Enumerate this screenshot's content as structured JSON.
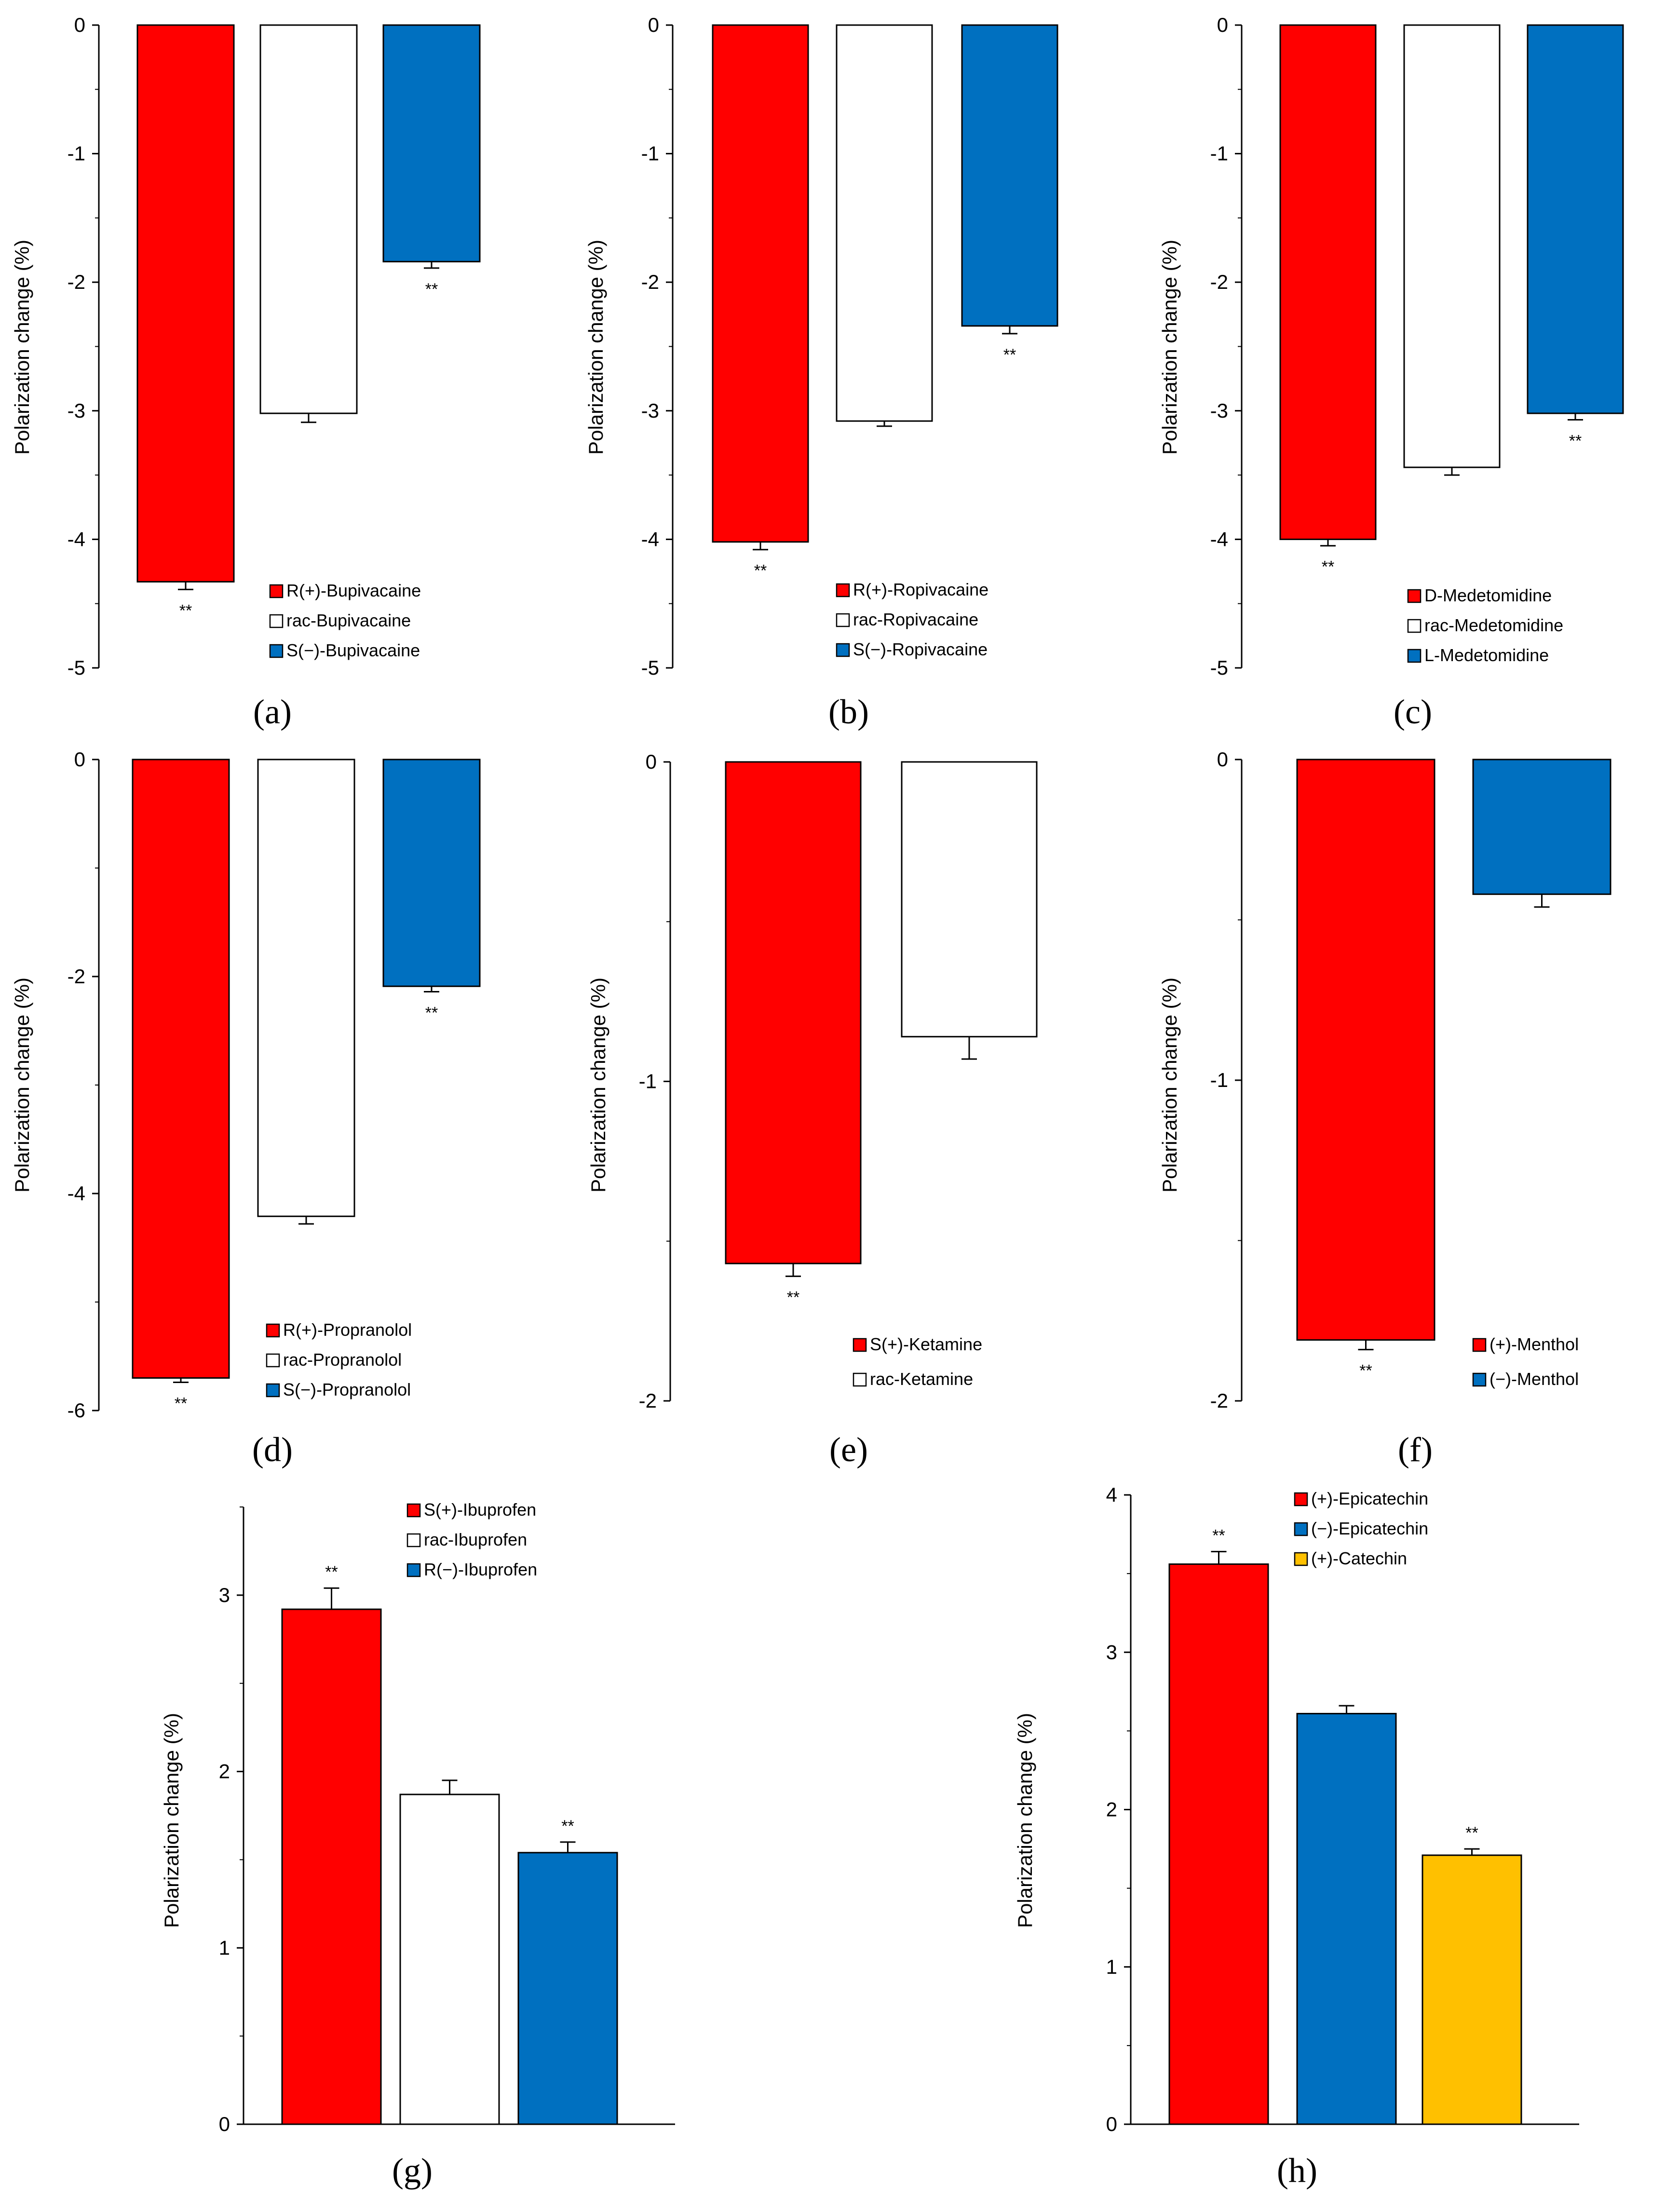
{
  "chart_data": [
    {
      "panel": "a",
      "panel_label": "(a)",
      "type": "bar",
      "ylabel": "Polarization change (%)",
      "ylim": [
        -5,
        0
      ],
      "yticks": [
        0,
        -1,
        -2,
        -3,
        -4,
        -5
      ],
      "categories": [
        "R(+)-Bupivacaine",
        "rac-Bupivacaine",
        "S(−)-Bupivacaine"
      ],
      "values": [
        -4.33,
        -3.02,
        -1.84
      ],
      "errors": [
        0.06,
        0.07,
        0.05
      ],
      "significance": [
        "**",
        "",
        "**"
      ],
      "colors": [
        "#ff0000",
        "#ffffff",
        "#0070c0"
      ]
    },
    {
      "panel": "b",
      "panel_label": "(b)",
      "type": "bar",
      "ylabel": "Polarization change (%)",
      "ylim": [
        -5,
        0
      ],
      "yticks": [
        0,
        -1,
        -2,
        -3,
        -4,
        -5
      ],
      "categories": [
        "R(+)-Ropivacaine",
        "rac-Ropivacaine",
        "S(−)-Ropivacaine"
      ],
      "values": [
        -4.02,
        -3.08,
        -2.34
      ],
      "errors": [
        0.06,
        0.04,
        0.06
      ],
      "significance": [
        "**",
        "",
        "**"
      ],
      "colors": [
        "#ff0000",
        "#ffffff",
        "#0070c0"
      ]
    },
    {
      "panel": "c",
      "panel_label": "(c)",
      "type": "bar",
      "ylabel": "Polarization change (%)",
      "ylim": [
        -5,
        0
      ],
      "yticks": [
        0,
        -1,
        -2,
        -3,
        -4,
        -5
      ],
      "categories": [
        "D-Medetomidine",
        "rac-Medetomidine",
        "L-Medetomidine"
      ],
      "values": [
        -4.0,
        -3.44,
        -3.02
      ],
      "errors": [
        0.05,
        0.06,
        0.05
      ],
      "significance": [
        "**",
        "",
        "**"
      ],
      "colors": [
        "#ff0000",
        "#ffffff",
        "#0070c0"
      ]
    },
    {
      "panel": "d",
      "panel_label": "(d)",
      "type": "bar",
      "ylabel": "Polarization change (%)",
      "ylim": [
        -6,
        0
      ],
      "yticks": [
        0,
        -2,
        -4,
        -6
      ],
      "categories": [
        "R(+)-Propranolol",
        "rac-Propranolol",
        "S(−)-Propranolol"
      ],
      "values": [
        -5.7,
        -4.21,
        -2.09
      ],
      "errors": [
        0.04,
        0.07,
        0.05
      ],
      "significance": [
        "**",
        "",
        "**"
      ],
      "colors": [
        "#ff0000",
        "#ffffff",
        "#0070c0"
      ]
    },
    {
      "panel": "e",
      "panel_label": "(e)",
      "type": "bar",
      "ylabel": "Polarization change (%)",
      "ylim": [
        -2,
        0
      ],
      "yticks": [
        0,
        -1,
        -2
      ],
      "categories": [
        "S(+)-Ketamine",
        "rac-Ketamine"
      ],
      "values": [
        -1.57,
        -0.86
      ],
      "errors": [
        0.04,
        0.07
      ],
      "significance": [
        "**",
        ""
      ],
      "colors": [
        "#ff0000",
        "#ffffff"
      ]
    },
    {
      "panel": "f",
      "panel_label": "(f)",
      "type": "bar",
      "ylabel": "Polarization change (%)",
      "ylim": [
        -2,
        0
      ],
      "yticks": [
        0,
        -1,
        -2
      ],
      "categories": [
        "(+)-Menthol",
        "(−)-Menthol"
      ],
      "values": [
        -1.81,
        -0.42
      ],
      "errors": [
        0.03,
        0.04
      ],
      "significance": [
        "**",
        ""
      ],
      "colors": [
        "#ff0000",
        "#0070c0"
      ]
    },
    {
      "panel": "g",
      "panel_label": "(g)",
      "type": "bar",
      "ylabel": "Polarization change (%)",
      "ylim": [
        0,
        3.5
      ],
      "yticks": [
        0,
        1,
        2,
        3
      ],
      "categories": [
        "S(+)-Ibuprofen",
        "rac-Ibuprofen",
        "R(−)-Ibuprofen"
      ],
      "values": [
        2.92,
        1.87,
        1.54
      ],
      "errors": [
        0.12,
        0.08,
        0.06
      ],
      "significance": [
        "**",
        "",
        "**"
      ],
      "colors": [
        "#ff0000",
        "#ffffff",
        "#0070c0"
      ]
    },
    {
      "panel": "h",
      "panel_label": "(h)",
      "type": "bar",
      "ylabel": "Polarization change (%)",
      "ylim": [
        0,
        4
      ],
      "yticks": [
        0,
        1,
        2,
        3,
        4
      ],
      "categories": [
        "(+)-Epicatechin",
        "(−)-Epicatechin",
        "(+)-Catechin"
      ],
      "values": [
        3.56,
        2.61,
        1.71
      ],
      "errors": [
        0.08,
        0.05,
        0.04
      ],
      "significance": [
        "**",
        "",
        "**"
      ],
      "colors": [
        "#ff0000",
        "#0070c0",
        "#ffc000"
      ]
    }
  ]
}
